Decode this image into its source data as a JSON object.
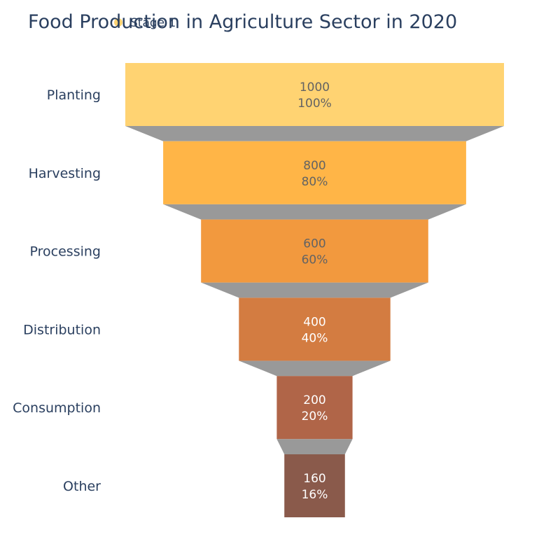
{
  "chart_data": {
    "type": "funnel",
    "title": "Food Production in Agriculture Sector in 2020",
    "legend": {
      "placement": "top-left",
      "entries": [
        {
          "name": "Stage 1",
          "color": "#FFD372"
        }
      ]
    },
    "categories": [
      "Planting",
      "Harvesting",
      "Processing",
      "Distribution",
      "Consumption",
      "Other"
    ],
    "series": [
      {
        "name": "Stage 1",
        "values": [
          1000,
          800,
          600,
          400,
          200,
          160
        ],
        "percent_labels": [
          "100%",
          "80%",
          "60%",
          "40%",
          "20%",
          "16%"
        ]
      }
    ],
    "colors": [
      "#FFD372",
      "#FFB547",
      "#F2993E",
      "#D37C41",
      "#B06548",
      "#8A5A4B"
    ],
    "label_colors": [
      "#636363",
      "#636363",
      "#636363",
      "#ffffff",
      "#ffffff",
      "#ffffff"
    ],
    "connector_color": "#999999",
    "grid": false
  }
}
